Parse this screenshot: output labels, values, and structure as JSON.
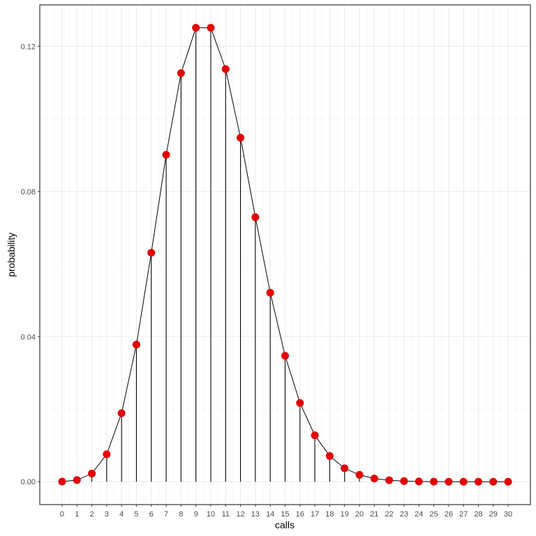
{
  "chart_data": {
    "type": "line",
    "title": "",
    "xlabel": "calls",
    "ylabel": "probability",
    "x": [
      0,
      1,
      2,
      3,
      4,
      5,
      6,
      7,
      8,
      9,
      10,
      11,
      12,
      13,
      14,
      15,
      16,
      17,
      18,
      19,
      20,
      21,
      22,
      23,
      24,
      25,
      26,
      27,
      28,
      29,
      30
    ],
    "series": [
      {
        "name": "probability",
        "values": [
          4.54e-05,
          0.000454,
          0.00227,
          0.00757,
          0.0189,
          0.0378,
          0.0631,
          0.0901,
          0.1126,
          0.1251,
          0.1251,
          0.1137,
          0.0948,
          0.0729,
          0.0521,
          0.0347,
          0.0217,
          0.0128,
          0.0071,
          0.0037,
          0.0019,
          0.00089,
          0.0004,
          0.00018,
          7e-05,
          3e-05,
          1e-05,
          4e-06,
          1e-06,
          6e-07,
          2e-07
        ],
        "marker_color": "#e60000",
        "line_color": "#000000",
        "style": "points + connecting line + vertical stems to zero"
      }
    ],
    "xticks": [
      "0",
      "1",
      "2",
      "3",
      "4",
      "5",
      "6",
      "7",
      "8",
      "9",
      "10",
      "11",
      "12",
      "13",
      "14",
      "15",
      "16",
      "17",
      "18",
      "19",
      "20",
      "21",
      "22",
      "23",
      "24",
      "25",
      "26",
      "27",
      "28",
      "29",
      "30"
    ],
    "yticks": [
      "0.00",
      "0.04",
      "0.08",
      "0.12"
    ],
    "ytick_values": [
      0,
      0.04,
      0.08,
      0.12
    ],
    "xlim": [
      -1.5,
      31.5
    ],
    "ylim": [
      -0.0063,
      0.1314
    ],
    "grid": true,
    "legend": null
  }
}
